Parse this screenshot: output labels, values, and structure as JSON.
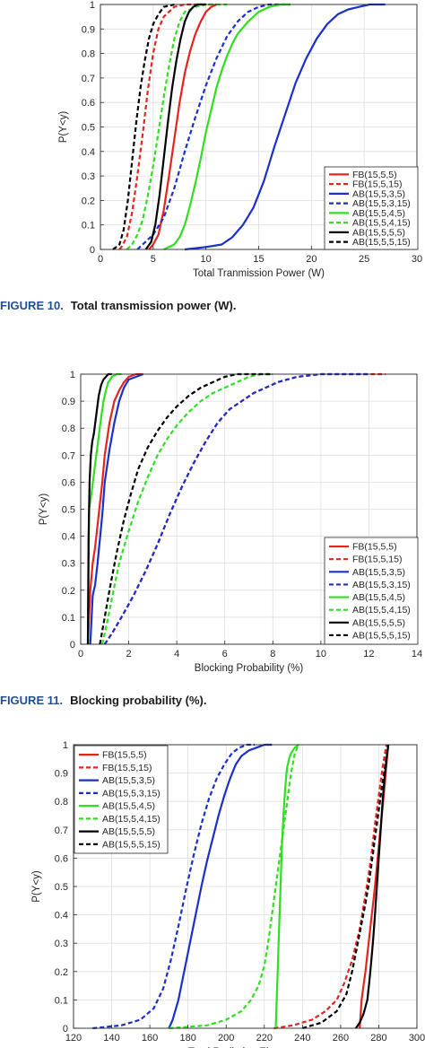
{
  "series_styles": [
    {
      "name": "FB(15,5,5)",
      "color": "#e8231f",
      "dash": false
    },
    {
      "name": "FB(15,5,15)",
      "color": "#e8231f",
      "dash": true
    },
    {
      "name": "AB(15,5,3,5)",
      "color": "#1a2fcc",
      "dash": false
    },
    {
      "name": "AB(15,5,3,15)",
      "color": "#1a2fcc",
      "dash": true
    },
    {
      "name": "AB(15,5,4,5)",
      "color": "#2ee01f",
      "dash": false
    },
    {
      "name": "AB(15,5,4,15)",
      "color": "#2ee01f",
      "dash": true
    },
    {
      "name": "AB(15,5,5,5)",
      "color": "#000000",
      "dash": false
    },
    {
      "name": "AB(15,5,5,15)",
      "color": "#000000",
      "dash": true
    }
  ],
  "captions": [
    {
      "label": "FIGURE 10.",
      "text": "Total transmission power (W)."
    },
    {
      "label": "FIGURE 11.",
      "text": "Blocking probability (%)."
    }
  ],
  "chart_data": [
    {
      "type": "line",
      "xlabel": "Total Tranmission Power (W)",
      "ylabel": "P(Y<y)",
      "xlim": [
        0,
        30
      ],
      "ylim": [
        0,
        1
      ],
      "xticks": [
        0,
        5,
        10,
        15,
        20,
        25,
        30
      ],
      "yticks": [
        0,
        0.1,
        0.2,
        0.3,
        0.4,
        0.5,
        0.6,
        0.7,
        0.8,
        0.9,
        1
      ],
      "grid": true,
      "legend_position": "bottom-right",
      "series": [
        {
          "name": "FB(15,5,5)",
          "x": [
            4.6,
            5.0,
            5.5,
            6.0,
            6.5,
            7.0,
            7.5,
            8.0,
            8.5,
            9.0,
            9.5,
            10.0,
            10.5,
            11.0
          ],
          "y": [
            0,
            0.02,
            0.06,
            0.16,
            0.3,
            0.45,
            0.6,
            0.72,
            0.81,
            0.88,
            0.93,
            0.97,
            0.99,
            1
          ]
        },
        {
          "name": "FB(15,5,15)",
          "x": [
            1.8,
            2.0,
            2.5,
            3.0,
            3.5,
            4.0,
            4.5,
            5.0,
            5.5,
            6.0,
            6.5,
            7.0,
            8.0,
            11.0
          ],
          "y": [
            0,
            0.01,
            0.05,
            0.15,
            0.3,
            0.47,
            0.65,
            0.8,
            0.9,
            0.95,
            0.97,
            0.99,
            1,
            1
          ]
        },
        {
          "name": "AB(15,5,3,5)",
          "x": [
            8.0,
            10.0,
            11.5,
            12.5,
            13.5,
            14.5,
            15.5,
            16.5,
            17.5,
            18.5,
            19.5,
            20.5,
            21.5,
            22.5,
            23.5,
            24.5,
            25.5,
            27.0
          ],
          "y": [
            0,
            0.01,
            0.02,
            0.05,
            0.1,
            0.17,
            0.28,
            0.42,
            0.55,
            0.68,
            0.78,
            0.86,
            0.92,
            0.96,
            0.98,
            0.99,
            1,
            1
          ]
        },
        {
          "name": "AB(15,5,3,15)",
          "x": [
            3.5,
            4.0,
            5.0,
            6.0,
            7.0,
            8.0,
            9.0,
            10.0,
            11.0,
            12.0,
            13.0,
            14.0,
            15.0,
            16.0,
            17.0,
            18.0
          ],
          "y": [
            0,
            0.02,
            0.06,
            0.13,
            0.25,
            0.4,
            0.54,
            0.67,
            0.78,
            0.87,
            0.93,
            0.97,
            0.99,
            1,
            1,
            1
          ]
        },
        {
          "name": "AB(15,5,4,5)",
          "x": [
            6.0,
            7.0,
            7.5,
            8.0,
            8.5,
            9.0,
            9.5,
            10.0,
            10.5,
            11.0,
            11.5,
            12.0,
            12.5,
            13.0,
            14.0,
            15.0,
            16.0,
            17.0,
            18.0
          ],
          "y": [
            0,
            0.02,
            0.05,
            0.1,
            0.18,
            0.27,
            0.37,
            0.48,
            0.57,
            0.66,
            0.73,
            0.79,
            0.84,
            0.88,
            0.93,
            0.97,
            0.99,
            1,
            1
          ]
        },
        {
          "name": "AB(15,5,4,15)",
          "x": [
            2.5,
            3.0,
            3.5,
            4.0,
            4.5,
            5.0,
            5.5,
            6.0,
            6.5,
            7.0,
            7.5,
            8.0,
            9.0,
            10.0,
            12.0
          ],
          "y": [
            0,
            0.02,
            0.06,
            0.12,
            0.22,
            0.34,
            0.48,
            0.62,
            0.75,
            0.86,
            0.93,
            0.97,
            0.99,
            1,
            1
          ]
        },
        {
          "name": "AB(15,5,5,5)",
          "x": [
            4.3,
            4.8,
            5.2,
            5.6,
            6.0,
            6.4,
            6.8,
            7.2,
            7.6,
            8.0,
            8.4,
            8.8,
            9.2,
            10.0
          ],
          "y": [
            0,
            0.03,
            0.1,
            0.22,
            0.37,
            0.52,
            0.66,
            0.77,
            0.86,
            0.93,
            0.97,
            0.99,
            1,
            1
          ]
        },
        {
          "name": "AB(15,5,5,15)",
          "x": [
            1.2,
            1.8,
            2.2,
            2.6,
            3.0,
            3.4,
            3.8,
            4.2,
            4.6,
            5.0,
            5.5,
            6.0,
            7.0
          ],
          "y": [
            0,
            0.02,
            0.08,
            0.2,
            0.36,
            0.52,
            0.66,
            0.77,
            0.86,
            0.92,
            0.96,
            0.99,
            1
          ]
        }
      ]
    },
    {
      "type": "line",
      "xlabel": "Blocking Probability (%)",
      "ylabel": "P(Y<y)",
      "xlim": [
        0,
        14
      ],
      "ylim": [
        0,
        1
      ],
      "xticks": [
        0,
        2,
        4,
        6,
        8,
        10,
        12,
        14
      ],
      "yticks": [
        0,
        0.1,
        0.2,
        0.3,
        0.4,
        0.5,
        0.6,
        0.7,
        0.8,
        0.9,
        1
      ],
      "grid": true,
      "legend_position": "bottom-right",
      "series": [
        {
          "name": "FB(15,5,5)",
          "x": [
            0.3,
            0.4,
            0.5,
            0.6,
            0.75,
            0.9,
            1.0,
            1.2,
            1.4,
            1.6,
            1.8,
            2.0,
            2.3,
            2.6
          ],
          "y": [
            0,
            0.2,
            0.3,
            0.36,
            0.48,
            0.6,
            0.7,
            0.82,
            0.9,
            0.94,
            0.97,
            0.99,
            1,
            1
          ]
        },
        {
          "name": "FB(15,5,15)",
          "x": [
            1.0,
            1.3,
            1.7,
            2.2,
            2.7,
            3.2,
            3.7,
            4.2,
            4.7,
            5.2,
            5.7,
            6.2,
            6.7,
            7.2,
            7.7,
            8.2,
            9.0,
            10.0,
            11.0,
            12.7
          ],
          "y": [
            0,
            0.04,
            0.1,
            0.18,
            0.27,
            0.37,
            0.48,
            0.58,
            0.67,
            0.75,
            0.82,
            0.87,
            0.9,
            0.93,
            0.95,
            0.97,
            0.99,
            1,
            1,
            1
          ]
        },
        {
          "name": "AB(15,5,3,5)",
          "x": [
            0.4,
            0.5,
            0.6,
            0.7,
            0.9,
            1.0,
            1.2,
            1.4,
            1.6,
            1.8,
            2.0,
            2.3,
            2.6
          ],
          "y": [
            0,
            0.18,
            0.22,
            0.3,
            0.48,
            0.6,
            0.72,
            0.82,
            0.9,
            0.95,
            0.98,
            0.99,
            1
          ]
        },
        {
          "name": "AB(15,5,3,15)",
          "x": [
            1.0,
            1.3,
            1.7,
            2.2,
            2.7,
            3.2,
            3.7,
            4.2,
            4.7,
            5.2,
            5.7,
            6.2,
            6.7,
            7.2,
            7.7,
            8.2,
            9.0,
            10.0,
            11.0,
            12.0
          ],
          "y": [
            0,
            0.04,
            0.1,
            0.18,
            0.27,
            0.37,
            0.48,
            0.58,
            0.67,
            0.75,
            0.82,
            0.87,
            0.9,
            0.93,
            0.95,
            0.97,
            0.99,
            1,
            1,
            1
          ]
        },
        {
          "name": "AB(15,5,4,5)",
          "x": [
            0.3,
            0.35,
            0.45,
            0.55,
            0.65,
            0.75,
            0.85,
            0.95,
            1.05,
            1.15,
            1.3,
            1.5,
            1.7
          ],
          "y": [
            0,
            0.5,
            0.56,
            0.63,
            0.7,
            0.77,
            0.84,
            0.9,
            0.94,
            0.97,
            0.99,
            1,
            1
          ]
        },
        {
          "name": "AB(15,5,4,15)",
          "x": [
            0.9,
            1.1,
            1.3,
            1.6,
            2.0,
            2.4,
            2.8,
            3.2,
            3.6,
            4.0,
            4.5,
            5.0,
            5.5,
            6.0,
            6.5,
            7.0,
            7.5,
            8.0
          ],
          "y": [
            0,
            0.08,
            0.17,
            0.3,
            0.42,
            0.53,
            0.62,
            0.7,
            0.76,
            0.81,
            0.86,
            0.9,
            0.93,
            0.95,
            0.97,
            0.99,
            1,
            1
          ]
        },
        {
          "name": "AB(15,5,5,5)",
          "x": [
            0.3,
            0.33,
            0.37,
            0.42,
            0.48,
            0.55,
            0.65,
            0.75,
            0.85,
            0.95,
            1.05,
            1.15,
            1.3
          ],
          "y": [
            0,
            0.4,
            0.6,
            0.7,
            0.75,
            0.78,
            0.85,
            0.92,
            0.96,
            0.98,
            0.99,
            1,
            1
          ]
        },
        {
          "name": "AB(15,5,5,15)",
          "x": [
            0.8,
            1.0,
            1.2,
            1.5,
            1.8,
            2.1,
            2.4,
            2.8,
            3.2,
            3.6,
            4.0,
            4.5,
            5.0,
            5.5,
            6.0,
            6.5,
            7.0,
            8.0
          ],
          "y": [
            0,
            0.1,
            0.2,
            0.34,
            0.46,
            0.56,
            0.65,
            0.73,
            0.79,
            0.84,
            0.88,
            0.92,
            0.95,
            0.97,
            0.99,
            1,
            1,
            1
          ]
        }
      ]
    },
    {
      "type": "line",
      "xlabel": "Total Radiating Elements",
      "ylabel": "P(Y<y)",
      "xlim": [
        120,
        300
      ],
      "ylim": [
        0,
        1
      ],
      "xticks": [
        120,
        140,
        160,
        180,
        200,
        220,
        240,
        260,
        280,
        300
      ],
      "yticks": [
        0,
        0.1,
        0.2,
        0.3,
        0.4,
        0.5,
        0.6,
        0.7,
        0.8,
        0.9,
        1
      ],
      "grid": true,
      "legend_position": "top-left",
      "series": [
        {
          "name": "FB(15,5,5)",
          "x": [
            270,
            271,
            272,
            273,
            274,
            275,
            276,
            277,
            278,
            279,
            280,
            281,
            282,
            283,
            284,
            285
          ],
          "y": [
            0,
            0.1,
            0.15,
            0.2,
            0.26,
            0.32,
            0.38,
            0.44,
            0.5,
            0.57,
            0.64,
            0.71,
            0.78,
            0.85,
            0.93,
            1
          ]
        },
        {
          "name": "FB(15,5,15)",
          "x": [
            225,
            235,
            245,
            252,
            258,
            262,
            266,
            270,
            273,
            276,
            278,
            280,
            282,
            284
          ],
          "y": [
            0,
            0.01,
            0.03,
            0.06,
            0.1,
            0.16,
            0.24,
            0.35,
            0.47,
            0.6,
            0.72,
            0.82,
            0.92,
            1
          ]
        },
        {
          "name": "AB(15,5,3,5)",
          "x": [
            170,
            172,
            175,
            178,
            181,
            184,
            187,
            190,
            193,
            196,
            199,
            202,
            205,
            208,
            212,
            216,
            220,
            224
          ],
          "y": [
            0,
            0.03,
            0.1,
            0.2,
            0.3,
            0.4,
            0.5,
            0.59,
            0.67,
            0.75,
            0.82,
            0.88,
            0.93,
            0.96,
            0.98,
            0.99,
            1,
            1
          ]
        },
        {
          "name": "AB(15,5,3,15)",
          "x": [
            130,
            145,
            155,
            162,
            167,
            171,
            175,
            179,
            183,
            187,
            191,
            195,
            199,
            203,
            207,
            211,
            215
          ],
          "y": [
            0,
            0.01,
            0.03,
            0.07,
            0.14,
            0.24,
            0.36,
            0.49,
            0.61,
            0.72,
            0.81,
            0.88,
            0.93,
            0.97,
            0.99,
            1,
            1
          ]
        },
        {
          "name": "AB(15,5,4,5)",
          "x": [
            226,
            226.5,
            227,
            227.5,
            228,
            228.5,
            229,
            229.5,
            230,
            230.5,
            231,
            231.5,
            232,
            233,
            234,
            236,
            238
          ],
          "y": [
            0,
            0.1,
            0.2,
            0.3,
            0.4,
            0.5,
            0.6,
            0.68,
            0.75,
            0.8,
            0.85,
            0.89,
            0.92,
            0.95,
            0.97,
            0.99,
            1
          ]
        },
        {
          "name": "AB(15,5,4,15)",
          "x": [
            170,
            190,
            200,
            208,
            213,
            217,
            220,
            222,
            224,
            226,
            228,
            230,
            232,
            234,
            236,
            238
          ],
          "y": [
            0,
            0.01,
            0.03,
            0.06,
            0.1,
            0.15,
            0.22,
            0.3,
            0.4,
            0.5,
            0.6,
            0.7,
            0.8,
            0.9,
            0.97,
            1
          ]
        },
        {
          "name": "AB(15,5,5,5)",
          "x": [
            268,
            270,
            272,
            274,
            275,
            276,
            277,
            278,
            279,
            280,
            281,
            282,
            283,
            284,
            285
          ],
          "y": [
            0,
            0.02,
            0.05,
            0.1,
            0.16,
            0.23,
            0.31,
            0.4,
            0.5,
            0.6,
            0.7,
            0.8,
            0.88,
            0.95,
            1
          ]
        },
        {
          "name": "AB(15,5,5,15)",
          "x": [
            240,
            250,
            258,
            263,
            266,
            269,
            271,
            273,
            275,
            277,
            279,
            281,
            283,
            285
          ],
          "y": [
            0,
            0.02,
            0.06,
            0.12,
            0.2,
            0.3,
            0.37,
            0.44,
            0.52,
            0.62,
            0.72,
            0.82,
            0.91,
            1
          ]
        }
      ]
    }
  ]
}
